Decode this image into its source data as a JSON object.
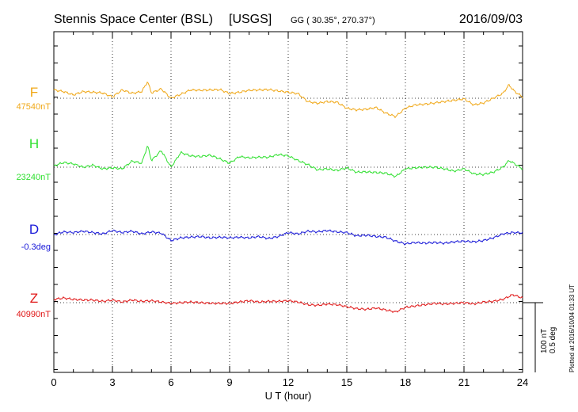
{
  "header": {
    "station": "Stennis Space Center (BSL)",
    "network": "[USGS]",
    "coords": "GG ( 30.35°, 270.37°)",
    "date": "2016/09/03"
  },
  "plotted_note": "Plotted at 2016/10/04 01:33 UT",
  "scale_bar": {
    "line1": "100 nT",
    "line2": "0.5 deg"
  },
  "chart_data": {
    "type": "line",
    "xlabel": "U T (hour)",
    "xlim": [
      0,
      24
    ],
    "xticks": [
      0,
      3,
      6,
      9,
      12,
      15,
      18,
      21,
      24
    ],
    "grid": true,
    "series": [
      {
        "name": "F",
        "baseline_label": "47540nT",
        "color": "#f0a818",
        "hours": [
          0,
          0.5,
          1,
          1.5,
          2,
          2.5,
          3,
          3.5,
          4,
          4.5,
          4.8,
          5,
          5.5,
          6,
          6.5,
          7,
          7.5,
          8,
          8.5,
          9,
          9.5,
          10,
          10.5,
          11,
          11.5,
          12,
          12.5,
          13,
          13.5,
          14,
          14.5,
          15,
          15.5,
          16,
          16.5,
          17,
          17.5,
          18,
          18.5,
          19,
          19.5,
          20,
          20.5,
          21,
          21.5,
          22,
          22.5,
          23,
          23.3,
          23.6,
          24
        ],
        "values": [
          25,
          20,
          10,
          20,
          18,
          16,
          4,
          25,
          15,
          20,
          50,
          16,
          28,
          0,
          12,
          25,
          24,
          25,
          26,
          14,
          18,
          24,
          25,
          26,
          22,
          18,
          14,
          -10,
          -15,
          -10,
          -12,
          -30,
          -35,
          -33,
          -28,
          -45,
          -55,
          -30,
          -20,
          -18,
          -14,
          -10,
          -6,
          -2,
          -20,
          -14,
          0,
          15,
          40,
          20,
          4
        ]
      },
      {
        "name": "H",
        "baseline_label": "23240nT",
        "color": "#30e030",
        "hours": [
          0,
          0.5,
          1,
          1.5,
          2,
          2.5,
          3,
          3.5,
          4,
          4.5,
          4.8,
          5,
          5.5,
          6,
          6.5,
          7,
          7.5,
          8,
          8.5,
          9,
          9.5,
          10,
          10.5,
          11,
          11.5,
          12,
          12.5,
          13,
          13.5,
          14,
          14.5,
          15,
          15.5,
          16,
          16.5,
          17,
          17.5,
          18,
          18.5,
          19,
          19.5,
          20,
          20.5,
          21,
          21.5,
          22,
          22.5,
          23,
          23.3,
          23.6,
          24
        ],
        "values": [
          4,
          14,
          10,
          0,
          6,
          -5,
          -2,
          -5,
          18,
          12,
          65,
          20,
          50,
          0,
          44,
          34,
          32,
          36,
          25,
          12,
          32,
          28,
          30,
          30,
          38,
          34,
          20,
          8,
          -8,
          -5,
          -10,
          -2,
          -15,
          -14,
          -16,
          -18,
          -28,
          -5,
          -2,
          0,
          0,
          -5,
          -12,
          -5,
          -20,
          -22,
          -15,
          0,
          20,
          10,
          -5
        ]
      },
      {
        "name": "D",
        "baseline_label": "-0.3deg",
        "color": "#1818d8",
        "hours": [
          0,
          0.5,
          1,
          1.5,
          2,
          2.5,
          3,
          3.5,
          4,
          4.5,
          5,
          5.5,
          6,
          6.5,
          7,
          7.5,
          8,
          8.5,
          9,
          9.5,
          10,
          10.5,
          11,
          11.5,
          12,
          12.5,
          13,
          13.5,
          14,
          14.5,
          15,
          15.5,
          16,
          16.5,
          17,
          17.5,
          18,
          18.5,
          19,
          19.5,
          20,
          20.5,
          21,
          21.5,
          22,
          22.5,
          23,
          23.5,
          24
        ],
        "values": [
          0,
          8,
          6,
          10,
          6,
          2,
          12,
          6,
          10,
          2,
          8,
          4,
          -18,
          -10,
          -8,
          -6,
          -10,
          -8,
          -10,
          -8,
          -10,
          -6,
          -12,
          -6,
          6,
          2,
          10,
          8,
          12,
          8,
          6,
          -4,
          -2,
          -6,
          -8,
          -20,
          -28,
          -24,
          -26,
          -24,
          -26,
          -22,
          -20,
          -22,
          -18,
          -10,
          2,
          6,
          5
        ]
      },
      {
        "name": "Z",
        "baseline_label": "40990nT",
        "color": "#e01818",
        "hours": [
          0,
          0.5,
          1,
          1.5,
          2,
          2.5,
          3,
          3.5,
          4,
          4.5,
          5,
          5.5,
          6,
          6.5,
          7,
          7.5,
          8,
          8.5,
          9,
          9.5,
          10,
          10.5,
          11,
          11.5,
          12,
          12.5,
          13,
          13.5,
          14,
          14.5,
          15,
          15.5,
          16,
          16.5,
          17,
          17.5,
          18,
          18.5,
          19,
          19.5,
          20,
          20.5,
          21,
          21.5,
          22,
          22.5,
          23,
          23.5,
          24
        ],
        "values": [
          10,
          14,
          10,
          8,
          8,
          4,
          8,
          2,
          8,
          4,
          6,
          2,
          -2,
          0,
          2,
          0,
          -2,
          -2,
          -2,
          2,
          6,
          2,
          4,
          4,
          6,
          2,
          -6,
          -8,
          -4,
          -6,
          -12,
          -18,
          -20,
          -16,
          -22,
          -28,
          -14,
          -10,
          -6,
          -2,
          -4,
          -2,
          0,
          -4,
          2,
          4,
          10,
          24,
          14
        ]
      }
    ]
  }
}
